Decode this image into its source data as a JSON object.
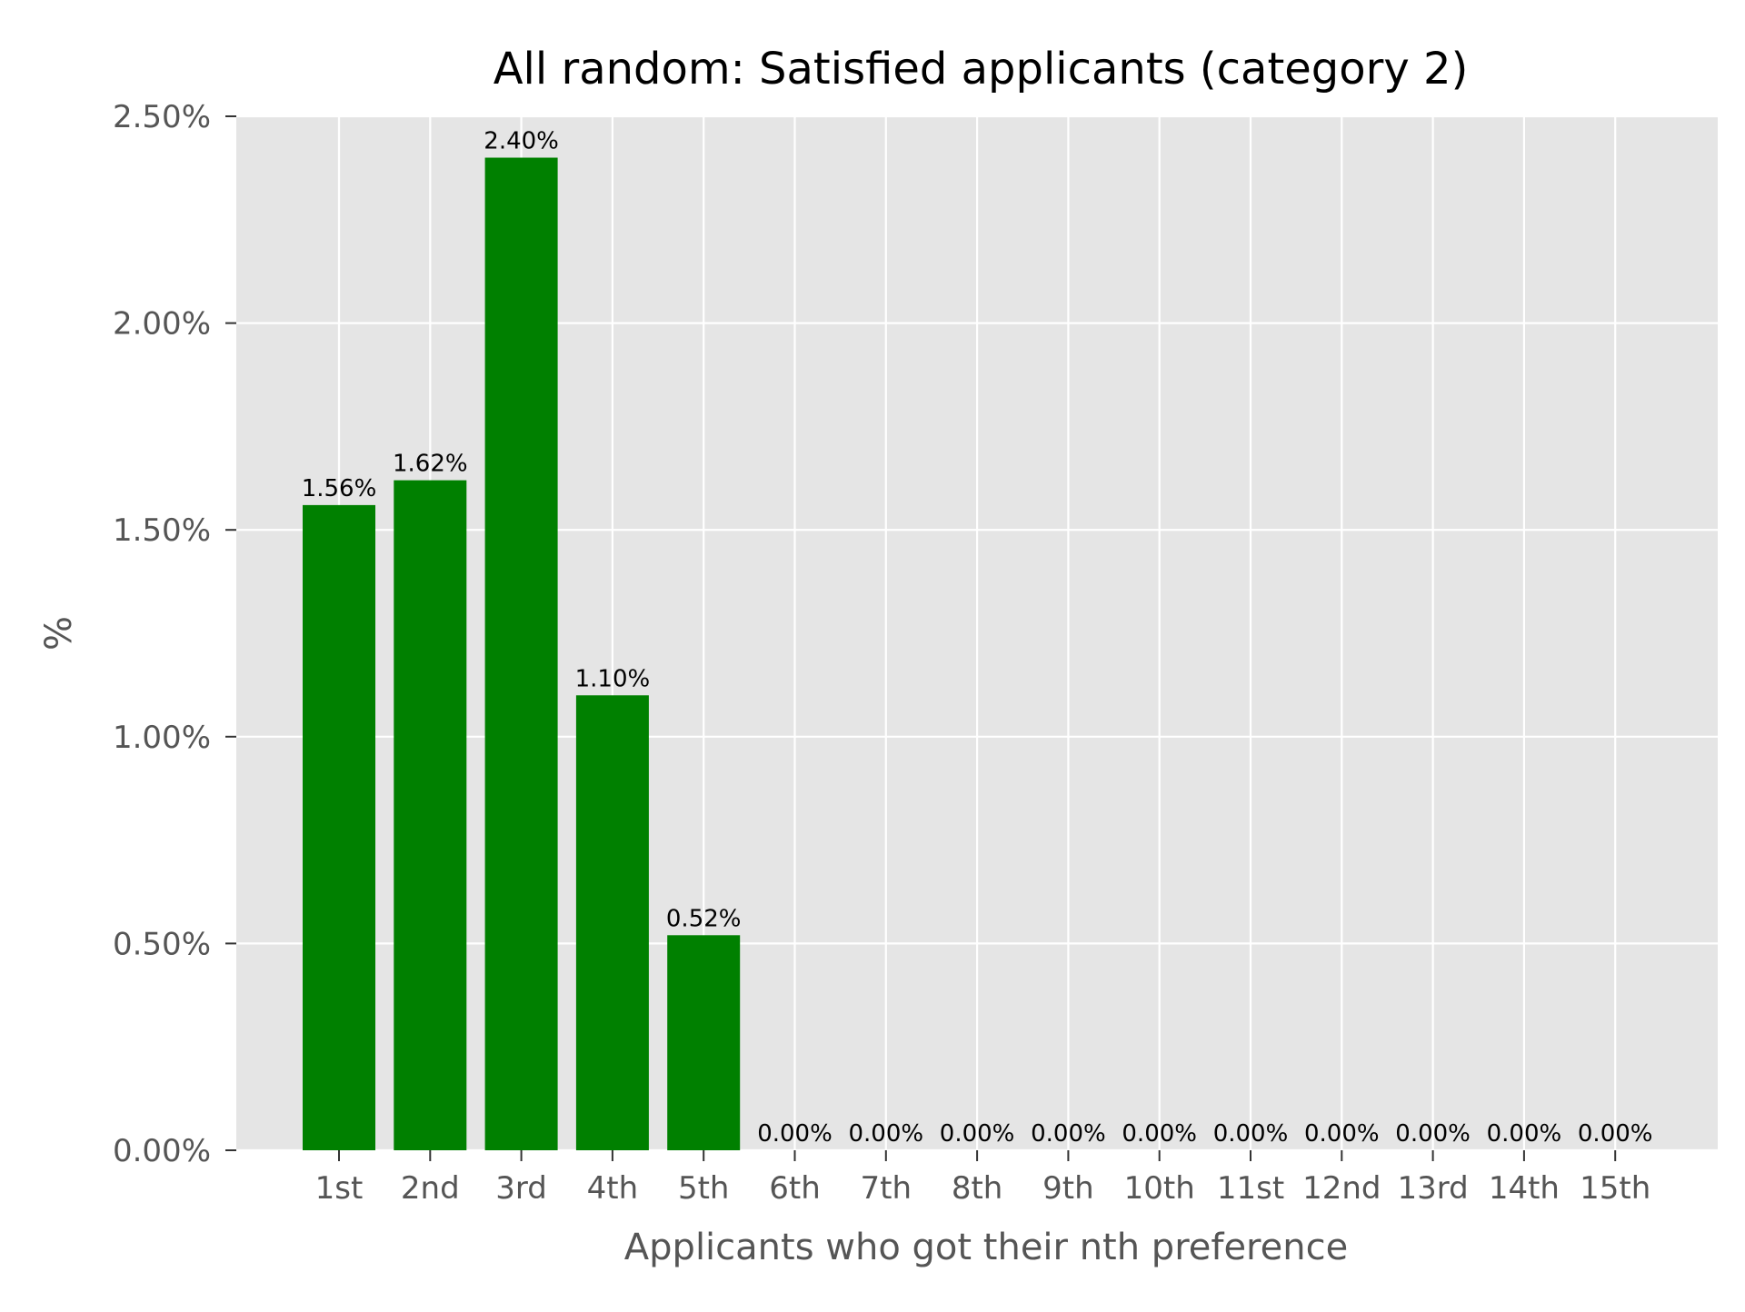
{
  "chart_data": {
    "type": "bar",
    "title": "All random: Satisfied applicants (category 2)",
    "xlabel": "Applicants who got their nth preference",
    "ylabel": "%",
    "categories": [
      "1st",
      "2nd",
      "3rd",
      "4th",
      "5th",
      "6th",
      "7th",
      "8th",
      "9th",
      "10th",
      "11st",
      "12nd",
      "13rd",
      "14th",
      "15th"
    ],
    "values": [
      1.56,
      1.62,
      2.4,
      1.1,
      0.52,
      0.0,
      0.0,
      0.0,
      0.0,
      0.0,
      0.0,
      0.0,
      0.0,
      0.0,
      0.0
    ],
    "data_labels": [
      "1.56%",
      "1.62%",
      "2.40%",
      "1.10%",
      "0.52%",
      "0.00%",
      "0.00%",
      "0.00%",
      "0.00%",
      "0.00%",
      "0.00%",
      "0.00%",
      "0.00%",
      "0.00%",
      "0.00%"
    ],
    "yticks": [
      0,
      0.5,
      1.0,
      1.5,
      2.0,
      2.5
    ],
    "ytick_labels": [
      "0.00%",
      "0.50%",
      "1.00%",
      "1.50%",
      "2.00%",
      "2.50%"
    ],
    "ylim": [
      0,
      2.5
    ],
    "grid": true,
    "colors": {
      "bar": "#008000",
      "plot_background": "#e5e5e5",
      "grid": "#ffffff",
      "tick_text": "#555555",
      "title_text": "#000000"
    }
  }
}
